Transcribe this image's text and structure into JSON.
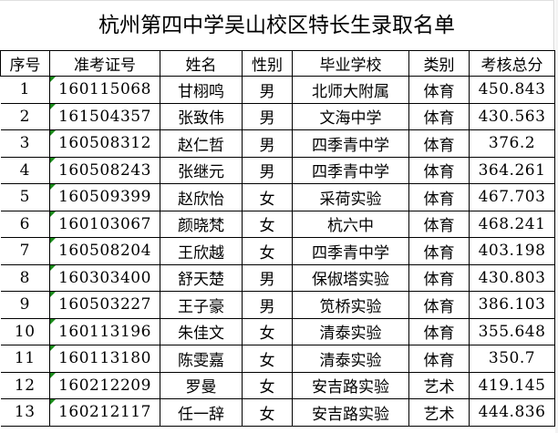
{
  "title": "杭州第四中学吴山校区特长生录取名单",
  "columns": [
    "序号",
    "准考证号",
    "姓名",
    "性别",
    "毕业学校",
    "类别",
    "考核总分"
  ],
  "rows": [
    [
      "1",
      "160115068",
      "甘栩鸣",
      "男",
      "北师大附属",
      "体育",
      "450.843"
    ],
    [
      "2",
      "161504357",
      "张致伟",
      "男",
      "文海中学",
      "体育",
      "430.563"
    ],
    [
      "3",
      "160508312",
      "赵仁哲",
      "男",
      "四季青中学",
      "体育",
      "376.2"
    ],
    [
      "4",
      "160508243",
      "张继元",
      "男",
      "四季青中学",
      "体育",
      "364.261"
    ],
    [
      "5",
      "160509399",
      "赵欣怡",
      "女",
      "采荷实验",
      "体育",
      "467.703"
    ],
    [
      "6",
      "160103067",
      "颜晓梵",
      "女",
      "杭六中",
      "体育",
      "468.241"
    ],
    [
      "7",
      "160508204",
      "王欣越",
      "女",
      "四季青中学",
      "体育",
      "403.198"
    ],
    [
      "8",
      "160303400",
      "舒天楚",
      "男",
      "保俶塔实验",
      "体育",
      "430.803"
    ],
    [
      "9",
      "160503227",
      "王子豪",
      "男",
      "笕桥实验",
      "体育",
      "386.103"
    ],
    [
      "10",
      "160113196",
      "朱佳文",
      "女",
      "清泰实验",
      "体育",
      "355.648"
    ],
    [
      "11",
      "160113180",
      "陈雯嘉",
      "女",
      "清泰实验",
      "体育",
      "350.7"
    ],
    [
      "12",
      "160212209",
      "罗曼",
      "女",
      "安吉路实验",
      "艺术",
      "419.145"
    ],
    [
      "13",
      "160212117",
      "任一辞",
      "女",
      "安吉路实验",
      "艺术",
      "444.836"
    ]
  ],
  "colors": {
    "text-note-marker": "#1a8a1a",
    "grid": "#000000"
  }
}
